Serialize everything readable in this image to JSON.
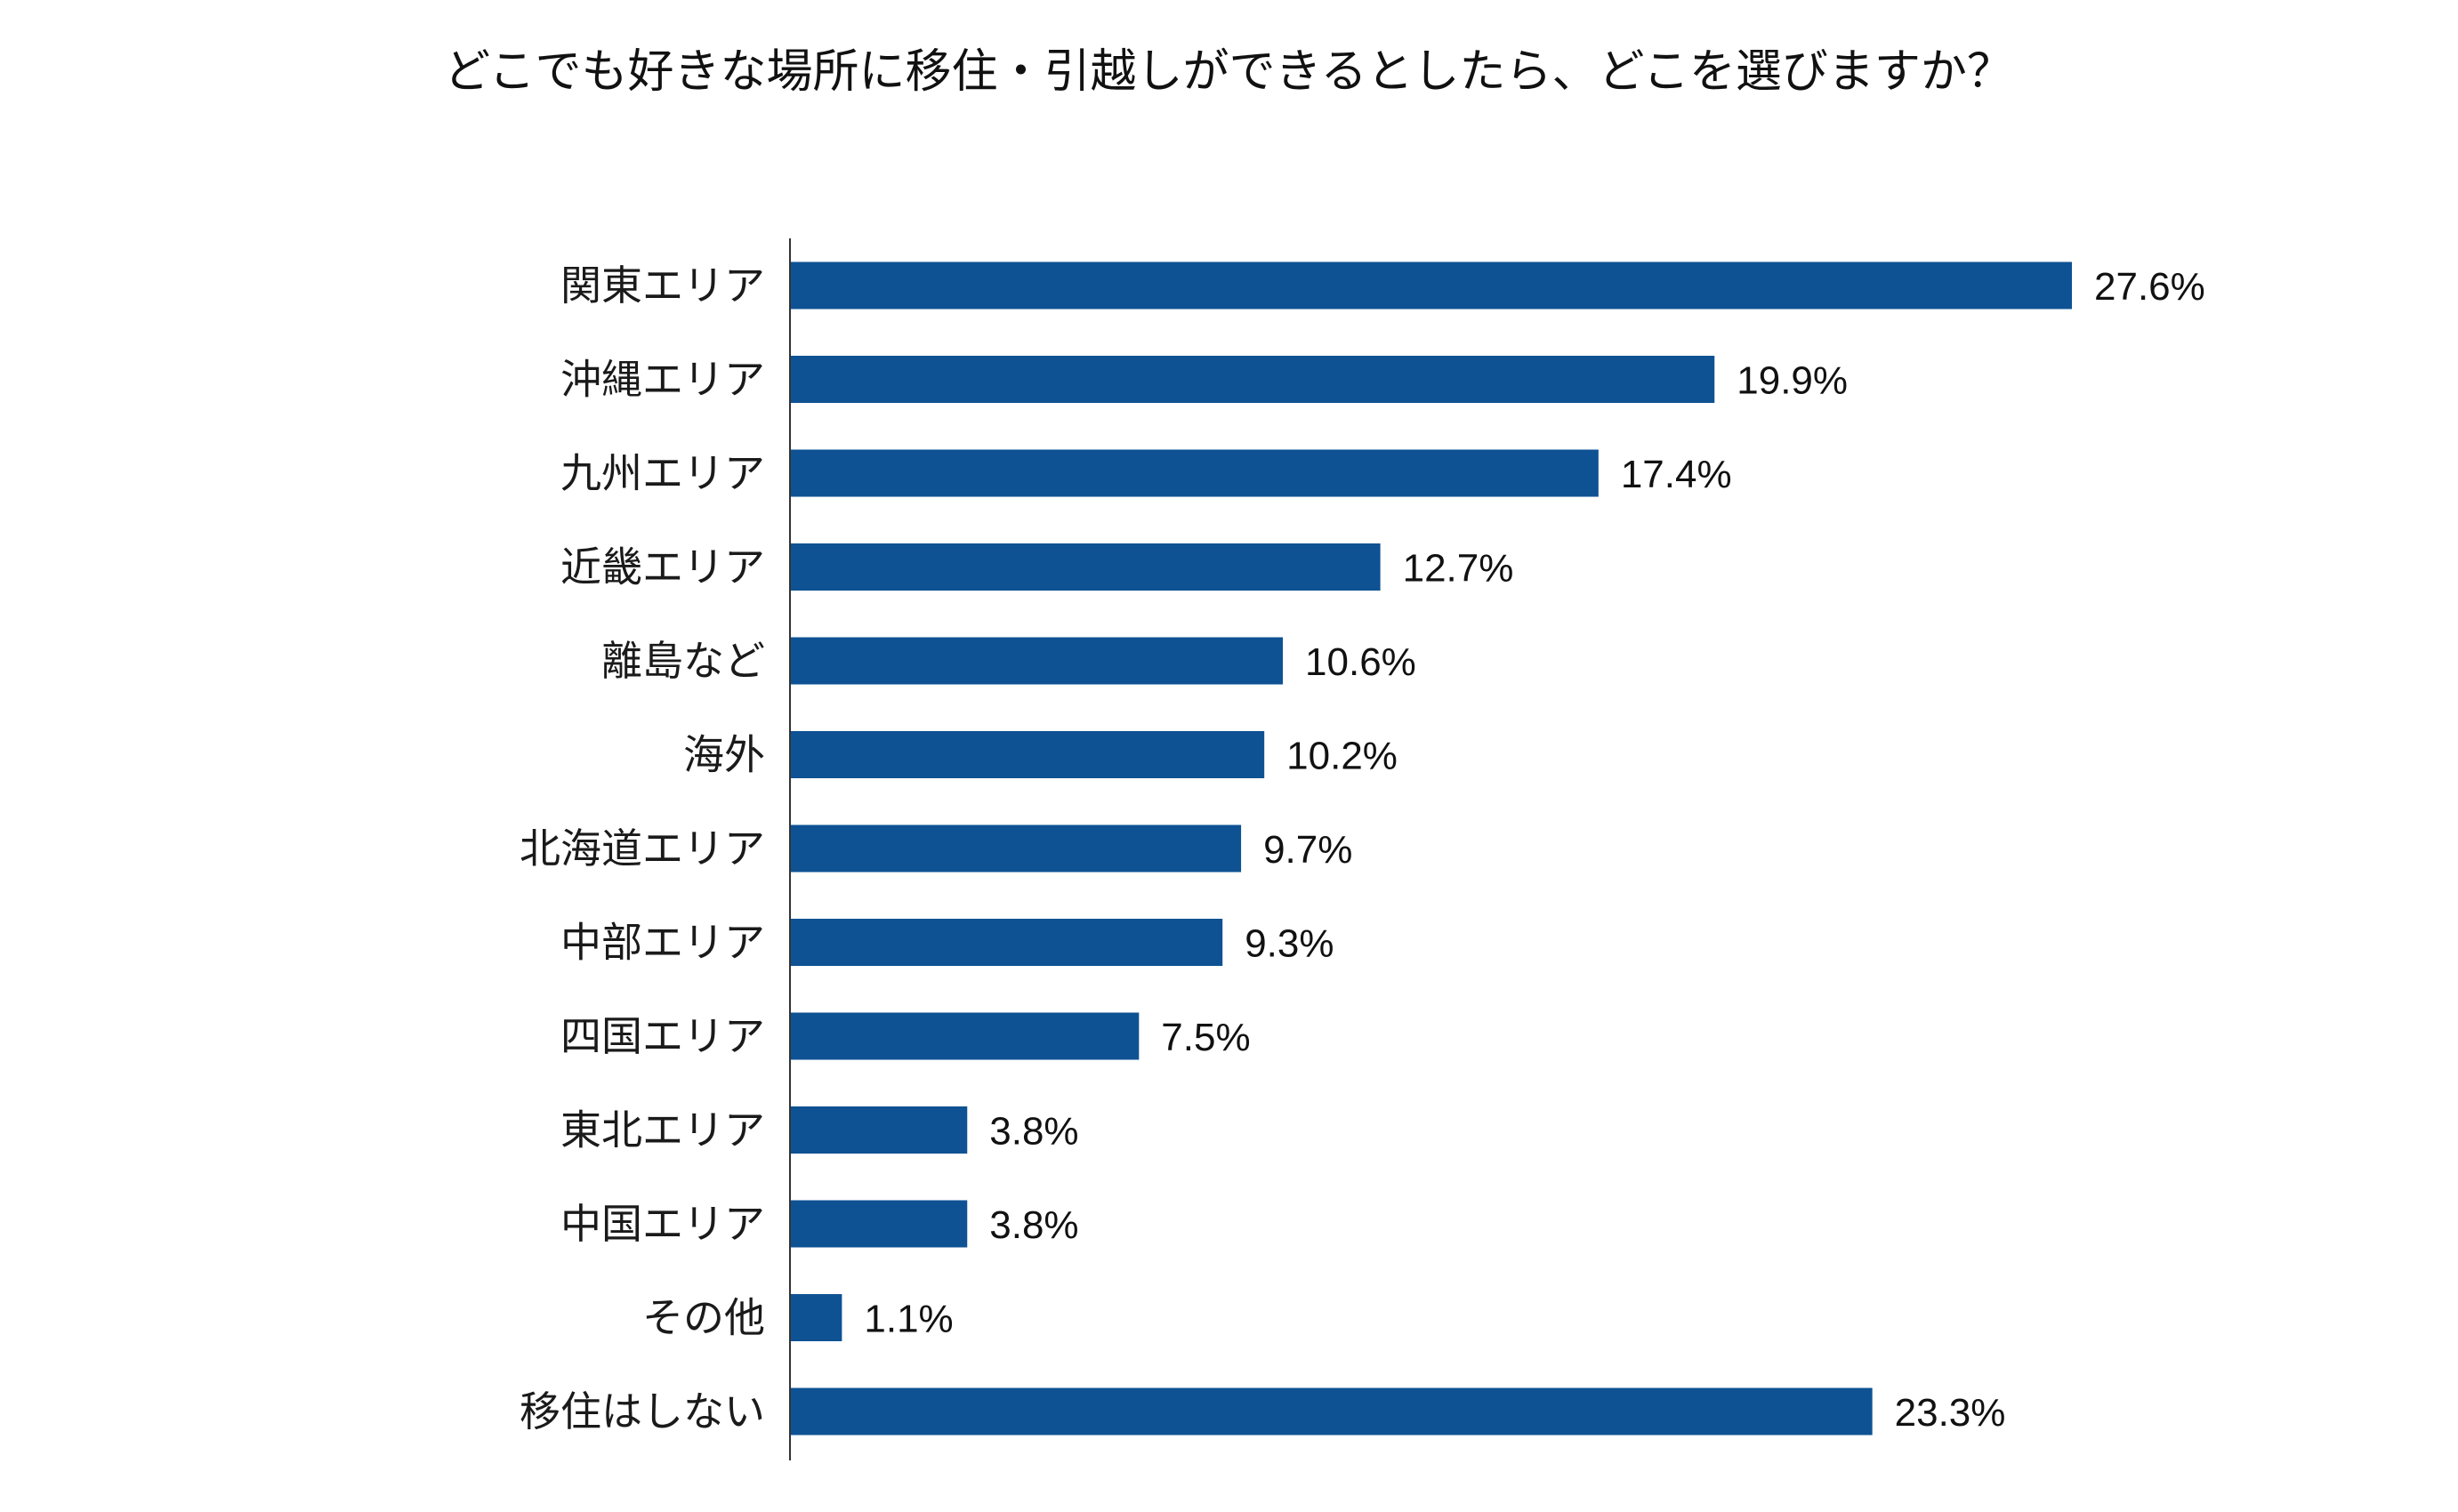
{
  "chart_data": {
    "type": "bar",
    "orientation": "horizontal",
    "title": "どこでも好きな場所に移住・引越しができるとしたら、どこを選びますか？",
    "xlabel": "",
    "ylabel": "",
    "grid": false,
    "value_suffix": "%",
    "xlim": [
      0,
      27.6
    ],
    "categories": [
      "関東エリア",
      "沖縄エリア",
      "九州エリア",
      "近畿エリア",
      "離島など",
      "海外",
      "北海道エリア",
      "中部エリア",
      "四国エリア",
      "東北エリア",
      "中国エリア",
      "その他",
      "移住はしない"
    ],
    "values": [
      27.6,
      19.9,
      17.4,
      12.7,
      10.6,
      10.2,
      9.7,
      9.3,
      7.5,
      3.8,
      3.8,
      1.1,
      23.3
    ],
    "value_labels": [
      "27.6%",
      "19.9%",
      "17.4%",
      "12.7%",
      "10.6%",
      "10.2%",
      "9.7%",
      "9.3%",
      "7.5%",
      "3.8%",
      "3.8%",
      "1.1%",
      "23.3%"
    ],
    "bar_color": "#0e5293",
    "axis_color": "#333333"
  }
}
